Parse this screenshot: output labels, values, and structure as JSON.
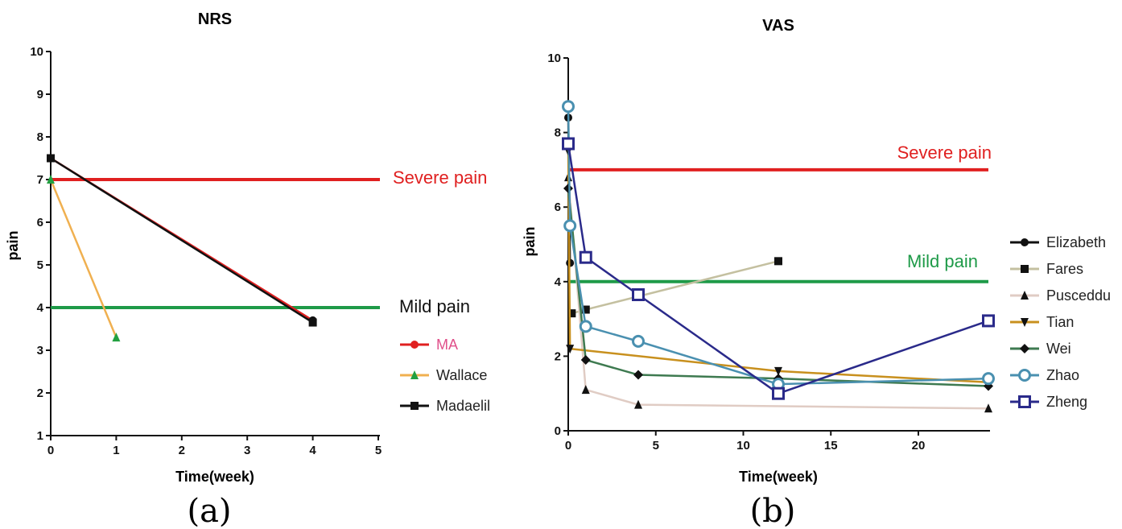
{
  "chart_data": [
    {
      "type": "line",
      "title": "NRS",
      "xlabel": "Time(week)",
      "ylabel": "pain",
      "xlim": [
        0,
        5
      ],
      "ylim": [
        1,
        10
      ],
      "xticks": [
        "0",
        "1",
        "2",
        "3",
        "4",
        "5"
      ],
      "yticks": [
        "1",
        "2",
        "3",
        "4",
        "5",
        "6",
        "7",
        "8",
        "9",
        "10"
      ],
      "grid": false,
      "legend": "right",
      "reference_lines": [
        {
          "label": "Severe pain",
          "y": 7,
          "color": "#e02020"
        },
        {
          "label": "Mild pain",
          "y": 4,
          "color": "#1e9a48"
        }
      ],
      "series": [
        {
          "name": "MA",
          "color": "#e02020",
          "label_color": "#e0508a",
          "marker": "circle",
          "x": [
            0,
            4
          ],
          "y": [
            7.5,
            3.7
          ]
        },
        {
          "name": "Wallace",
          "color": "#f0b050",
          "label_color": "#222222",
          "marker": "triangle",
          "marker_color": "#22a040",
          "x": [
            0,
            1
          ],
          "y": [
            7.0,
            3.3
          ]
        },
        {
          "name": "Madaelil",
          "color": "#111111",
          "label_color": "#222222",
          "marker": "square",
          "x": [
            0,
            4
          ],
          "y": [
            7.5,
            3.65
          ]
        }
      ],
      "caption": "(a)"
    },
    {
      "type": "line",
      "title": "VAS",
      "xlabel": "Time(week)",
      "ylabel": "pain",
      "xlim": [
        0,
        24
      ],
      "ylim": [
        0,
        10
      ],
      "xticks": [
        "0",
        "5",
        "10",
        "15",
        "20"
      ],
      "yticks": [
        "0",
        "2",
        "4",
        "6",
        "8",
        "10"
      ],
      "grid": false,
      "legend": "right",
      "reference_lines": [
        {
          "label": "Severe pain",
          "y": 7,
          "color": "#e02020"
        },
        {
          "label": "Mild pain",
          "y": 4,
          "color": "#1e9a48"
        }
      ],
      "series": [
        {
          "name": "Elizabeth",
          "color": "#111111",
          "marker": "circle",
          "x": [
            0,
            0.1
          ],
          "y": [
            8.4,
            4.5
          ]
        },
        {
          "name": "Fares",
          "color": "#c4c0a0",
          "marker": "square",
          "x": [
            0.2,
            1,
            12
          ],
          "y": [
            3.15,
            3.25,
            4.55
          ]
        },
        {
          "name": "Pusceddu",
          "color": "#e0ccc4",
          "marker": "triangle",
          "x": [
            0,
            1,
            4,
            24
          ],
          "y": [
            6.8,
            1.1,
            0.7,
            0.6
          ]
        },
        {
          "name": "Tian",
          "color": "#c8901e",
          "marker": "triangle-down",
          "x": [
            0,
            0.1,
            12,
            24
          ],
          "y": [
            7.5,
            2.2,
            1.6,
            1.3
          ]
        },
        {
          "name": "Wei",
          "color": "#3e7a50",
          "marker": "diamond",
          "x": [
            0,
            1,
            4,
            12,
            24
          ],
          "y": [
            6.5,
            1.9,
            1.5,
            1.4,
            1.2
          ]
        },
        {
          "name": "Zhao",
          "color": "#4a90b0",
          "marker": "circle-open",
          "x": [
            0,
            0.1,
            1,
            4,
            12,
            24
          ],
          "y": [
            8.7,
            5.5,
            2.8,
            2.4,
            1.25,
            1.4
          ]
        },
        {
          "name": "Zheng",
          "color": "#2a2a8a",
          "marker": "square-open",
          "x": [
            0,
            1,
            4,
            12,
            24
          ],
          "y": [
            7.7,
            4.65,
            3.65,
            1.0,
            2.95
          ]
        }
      ],
      "caption": "(b)"
    }
  ]
}
